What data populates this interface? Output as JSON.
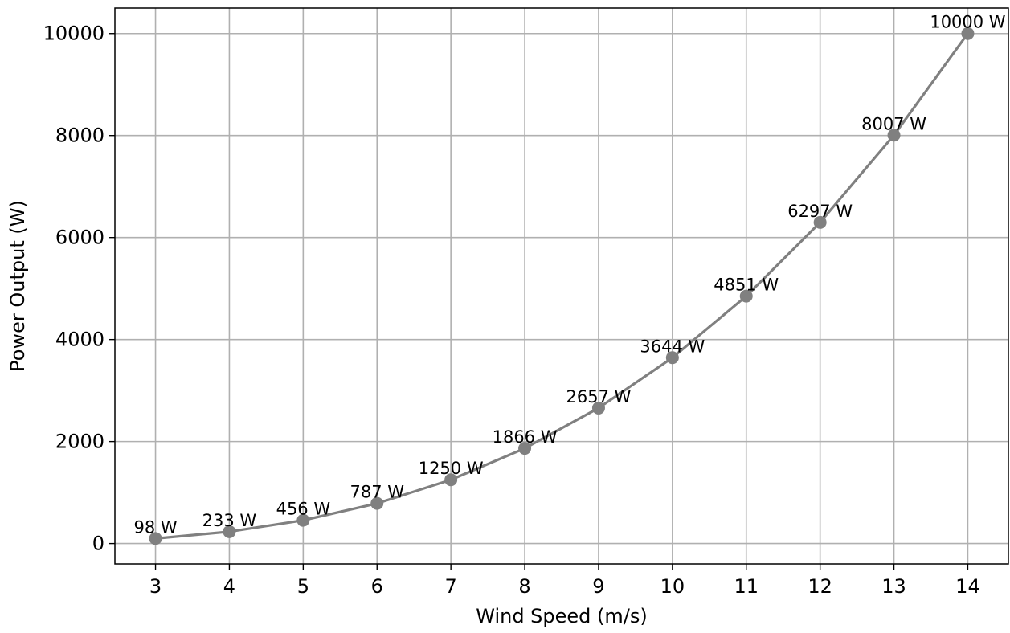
{
  "chart_data": {
    "type": "line",
    "title": "",
    "xlabel": "Wind Speed (m/s)",
    "ylabel": "Power Output (W)",
    "x": [
      3,
      4,
      5,
      6,
      7,
      8,
      9,
      10,
      11,
      12,
      13,
      14
    ],
    "series": [
      {
        "values": [
          98,
          233,
          456,
          787,
          1250,
          1866,
          2657,
          3644,
          4851,
          6297,
          8007,
          10000
        ],
        "labels": [
          "98 W",
          "233 W",
          "456 W",
          "787 W",
          "1250 W",
          "1866 W",
          "2657 W",
          "3644 W",
          "4851 W",
          "6297 W",
          "8007 W",
          "10000 W"
        ],
        "color": "#808080",
        "marker": "circle"
      }
    ],
    "xlim": [
      2.45,
      14.55
    ],
    "ylim": [
      -400,
      10500
    ],
    "xticks": [
      3,
      4,
      5,
      6,
      7,
      8,
      9,
      10,
      11,
      12,
      13,
      14
    ],
    "yticks": [
      0,
      2000,
      4000,
      6000,
      8000,
      10000
    ],
    "xticklabels": [
      "3",
      "4",
      "5",
      "6",
      "7",
      "8",
      "9",
      "10",
      "11",
      "12",
      "13",
      "14"
    ],
    "yticklabels": [
      "0",
      "2000",
      "4000",
      "6000",
      "8000",
      "10000"
    ],
    "grid": true,
    "grid_color": "#b0b0b0",
    "legend": "none"
  }
}
